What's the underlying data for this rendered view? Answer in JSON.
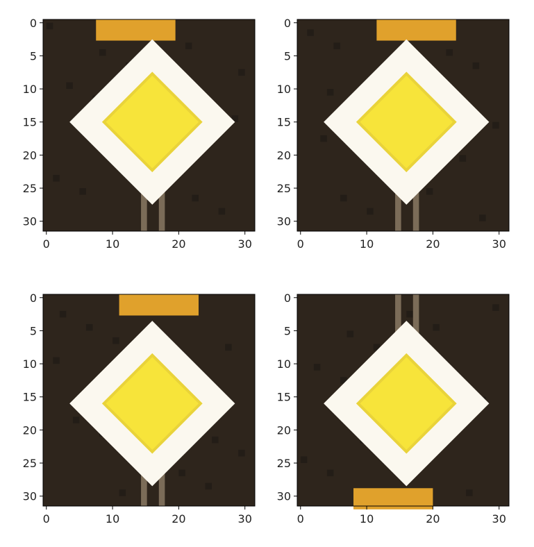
{
  "chart_data": [
    {
      "type": "heatmap",
      "panel": "top-left",
      "content": "32x32 pixel image of a yellow diamond priority-road sign with white border on dark background; orange plate at top",
      "xlim": [
        -0.5,
        31.5
      ],
      "ylim": [
        31.5,
        -0.5
      ],
      "xticks": [
        0,
        10,
        20,
        30
      ],
      "yticks": [
        0,
        5,
        10,
        15,
        20,
        25,
        30
      ],
      "xtick_labels": [
        "0",
        "10",
        "20",
        "30"
      ],
      "ytick_labels": [
        "0",
        "5",
        "10",
        "15",
        "20",
        "25",
        "30"
      ],
      "sign_center": [
        16,
        15
      ],
      "plate_position": "top",
      "plate_center_x": 13.5
    },
    {
      "type": "heatmap",
      "panel": "top-right",
      "content": "32x32 pixel image of the same sign, horizontally mirrored",
      "xlim": [
        -0.5,
        31.5
      ],
      "ylim": [
        31.5,
        -0.5
      ],
      "xticks": [
        0,
        10,
        20,
        30
      ],
      "yticks": [
        0,
        5,
        10,
        15,
        20,
        25,
        30
      ],
      "xtick_labels": [
        "0",
        "10",
        "20",
        "30"
      ],
      "ytick_labels": [
        "0",
        "5",
        "10",
        "15",
        "20",
        "25",
        "30"
      ],
      "sign_center": [
        16,
        15
      ],
      "plate_position": "top",
      "plate_center_x": 17.5
    },
    {
      "type": "heatmap",
      "panel": "bottom-left",
      "content": "32x32 pixel image of the same sign, slightly rotated",
      "xlim": [
        -0.5,
        31.5
      ],
      "ylim": [
        31.5,
        -0.5
      ],
      "xticks": [
        0,
        10,
        20,
        30
      ],
      "yticks": [
        0,
        5,
        10,
        15,
        20,
        25,
        30
      ],
      "xtick_labels": [
        "0",
        "10",
        "20",
        "30"
      ],
      "ytick_labels": [
        "0",
        "5",
        "10",
        "15",
        "20",
        "25",
        "30"
      ],
      "sign_center": [
        16,
        16
      ],
      "plate_position": "top",
      "plate_center_x": 17
    },
    {
      "type": "heatmap",
      "panel": "bottom-right",
      "content": "32x32 pixel image of the same sign, vertically flipped",
      "xlim": [
        -0.5,
        31.5
      ],
      "ylim": [
        31.5,
        -0.5
      ],
      "xticks": [
        0,
        10,
        20,
        30
      ],
      "yticks": [
        0,
        5,
        10,
        15,
        20,
        25,
        30
      ],
      "xtick_labels": [
        "0",
        "10",
        "20",
        "30"
      ],
      "ytick_labels": [
        "0",
        "5",
        "10",
        "15",
        "20",
        "25",
        "30"
      ],
      "sign_center": [
        16,
        16
      ],
      "plate_position": "bottom",
      "plate_center_x": 14
    }
  ],
  "colors": {
    "background": "#2e251c",
    "background_dark": "#1f1915",
    "white_border": "#fbf8ef",
    "yellow_center": "#f7e43a",
    "yellow_edge": "#e9d33a",
    "plate": "#e0a12c",
    "pole": "#7b6c58"
  }
}
